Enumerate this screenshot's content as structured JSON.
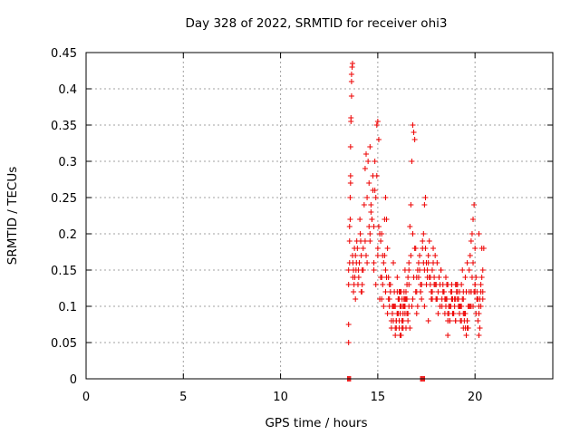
{
  "chart_data": {
    "type": "scatter",
    "title": "Day 328 of 2022, SRMTID for receiver ohi3",
    "xlabel": "GPS time / hours",
    "ylabel": "SRMTID / TECUs",
    "xlim": [
      0,
      24
    ],
    "ylim": [
      0,
      0.45
    ],
    "xticks": [
      0,
      5,
      10,
      15,
      20
    ],
    "yticks": [
      0,
      0.05,
      0.1,
      0.15,
      0.2,
      0.25,
      0.3,
      0.35,
      0.4,
      0.45
    ],
    "grid": true,
    "marker": "+",
    "color": "#ee0000",
    "series": [
      {
        "name": "ohi3",
        "x": [
          13.5,
          13.5,
          13.5,
          13.5,
          13.55,
          13.55,
          13.55,
          13.58,
          13.58,
          13.6,
          13.6,
          13.6,
          13.62,
          13.62,
          13.65,
          13.65,
          13.65,
          13.68,
          13.7,
          13.7,
          13.72,
          13.72,
          13.75,
          13.75,
          13.78,
          13.8,
          13.82,
          13.85,
          13.85,
          13.88,
          13.9,
          13.92,
          13.95,
          13.98,
          14.0,
          14.02,
          14.05,
          14.08,
          14.1,
          14.12,
          14.15,
          14.18,
          14.2,
          14.25,
          14.3,
          14.35,
          14.4,
          14.45,
          14.5,
          14.55,
          14.6,
          14.65,
          14.7,
          14.75,
          14.8,
          14.85,
          14.9,
          14.95,
          15.0,
          15.05,
          15.1,
          15.15,
          15.2,
          15.25,
          15.3,
          15.35,
          15.4,
          15.45,
          15.5,
          15.55,
          15.6,
          15.65,
          15.7,
          15.75,
          15.8,
          15.85,
          15.9,
          15.95,
          16.0,
          16.05,
          16.1,
          16.15,
          16.2,
          16.25,
          16.3,
          16.35,
          16.4,
          16.45,
          16.5,
          16.55,
          16.6,
          16.65,
          16.7,
          16.75,
          16.8,
          16.85,
          16.9,
          16.95,
          17.0,
          17.05,
          17.1,
          17.15,
          17.2,
          17.25,
          17.3,
          17.35,
          17.4,
          17.45,
          17.5,
          17.55,
          17.6,
          17.65,
          17.7,
          17.75,
          17.8,
          17.85,
          17.9,
          17.95,
          18.0,
          18.05,
          18.1,
          18.15,
          18.2,
          18.25,
          18.3,
          18.35,
          18.4,
          18.45,
          18.5,
          18.55,
          18.6,
          18.65,
          18.7,
          18.75,
          18.8,
          18.85,
          18.9,
          18.95,
          19.0,
          19.05,
          19.1,
          19.15,
          19.2,
          19.25,
          19.3,
          19.35,
          19.4,
          19.45,
          19.5,
          19.55,
          19.6,
          19.65,
          19.7,
          19.75,
          19.8,
          19.85,
          19.9,
          19.95,
          20.0,
          20.05,
          20.1,
          20.15,
          20.2,
          20.25,
          20.3,
          20.35,
          20.4,
          20.45,
          14.6,
          14.7,
          14.8,
          14.9,
          15.0,
          15.1,
          15.2,
          15.3,
          15.4,
          15.5,
          15.6,
          15.7,
          15.8,
          15.9,
          16.0,
          16.1,
          16.2,
          16.3,
          16.4,
          16.5,
          16.6,
          16.7,
          16.8,
          16.9,
          17.0,
          17.1,
          17.2,
          17.3,
          17.4,
          17.5,
          17.6,
          17.7,
          17.8,
          17.9,
          18.0,
          18.1,
          18.2,
          18.3,
          18.4,
          18.5,
          18.6,
          18.7,
          18.8,
          18.9,
          19.0,
          19.1,
          19.2,
          19.3,
          19.4,
          19.5,
          19.6,
          19.7,
          19.8,
          19.9,
          20.0,
          20.1,
          20.2,
          20.3,
          14.05,
          14.15,
          14.25,
          14.35,
          14.45,
          14.55,
          14.65,
          14.75,
          14.85,
          14.95,
          15.05,
          15.15,
          15.25,
          15.35,
          15.45,
          15.55,
          15.65,
          15.75,
          15.85,
          15.95,
          16.05,
          16.15,
          16.25,
          16.35,
          16.45,
          16.55,
          16.65,
          16.75,
          16.85,
          16.95,
          17.05,
          17.15,
          17.25,
          17.35,
          17.45,
          17.55,
          17.65,
          17.75,
          17.85,
          17.95,
          18.05,
          18.15,
          18.25,
          18.35,
          18.45,
          18.55,
          18.65,
          18.75,
          18.85,
          18.95,
          19.05,
          19.15,
          19.25,
          19.35,
          19.45,
          19.55,
          19.65,
          19.75,
          19.85,
          19.95,
          20.05,
          20.15,
          20.25,
          20.35,
          14.2,
          14.4,
          14.6,
          14.8,
          15.0,
          15.2,
          15.4,
          15.6,
          15.8,
          16.0,
          16.2,
          16.4,
          16.6,
          16.8,
          17.0,
          17.2,
          17.4,
          17.6,
          17.8,
          18.0,
          18.2,
          18.4,
          18.6,
          18.8,
          19.0,
          19.2,
          19.4,
          19.6,
          19.8,
          20.0,
          20.2,
          20.4,
          16.2,
          16.25,
          16.3,
          16.35,
          16.15,
          16.05,
          16.1,
          15.95,
          16.4,
          16.45,
          16.5,
          16.55,
          16.6,
          16.15,
          16.25,
          16.3,
          16.35,
          16.0,
          16.1,
          15.9,
          18.9,
          19.0,
          19.1,
          19.2,
          19.3,
          19.4,
          19.5,
          19.6,
          19.7,
          19.8,
          18.8,
          18.7,
          18.6,
          18.5,
          19.9,
          20.0,
          20.1,
          20.2,
          20.3,
          20.4,
          13.45,
          13.5,
          13.55,
          13.6,
          17.2,
          17.25,
          17.3,
          17.35,
          17.4
        ],
        "y": [
          0.05,
          0.075,
          0.13,
          0.15,
          0.16,
          0.19,
          0.21,
          0.22,
          0.25,
          0.27,
          0.28,
          0.32,
          0.355,
          0.36,
          0.39,
          0.41,
          0.42,
          0.43,
          0.435,
          0.17,
          0.14,
          0.16,
          0.12,
          0.15,
          0.13,
          0.18,
          0.14,
          0.17,
          0.11,
          0.15,
          0.16,
          0.19,
          0.18,
          0.13,
          0.15,
          0.14,
          0.16,
          0.22,
          0.2,
          0.19,
          0.17,
          0.12,
          0.13,
          0.15,
          0.24,
          0.29,
          0.31,
          0.25,
          0.3,
          0.27,
          0.32,
          0.24,
          0.22,
          0.28,
          0.21,
          0.26,
          0.25,
          0.35,
          0.355,
          0.33,
          0.2,
          0.14,
          0.11,
          0.13,
          0.16,
          0.17,
          0.25,
          0.22,
          0.18,
          0.14,
          0.1,
          0.12,
          0.07,
          0.09,
          0.08,
          0.1,
          0.06,
          0.08,
          0.09,
          0.11,
          0.07,
          0.1,
          0.06,
          0.08,
          0.1,
          0.12,
          0.09,
          0.07,
          0.11,
          0.14,
          0.16,
          0.21,
          0.24,
          0.3,
          0.35,
          0.34,
          0.33,
          0.18,
          0.12,
          0.1,
          0.14,
          0.15,
          0.13,
          0.11,
          0.18,
          0.2,
          0.24,
          0.25,
          0.16,
          0.14,
          0.17,
          0.19,
          0.13,
          0.11,
          0.15,
          0.18,
          0.13,
          0.17,
          0.11,
          0.16,
          0.12,
          0.14,
          0.1,
          0.15,
          0.11,
          0.13,
          0.12,
          0.09,
          0.1,
          0.11,
          0.13,
          0.09,
          0.08,
          0.1,
          0.12,
          0.11,
          0.09,
          0.1,
          0.08,
          0.12,
          0.13,
          0.11,
          0.09,
          0.1,
          0.13,
          0.15,
          0.07,
          0.08,
          0.09,
          0.06,
          0.07,
          0.1,
          0.12,
          0.17,
          0.19,
          0.2,
          0.22,
          0.24,
          0.18,
          0.14,
          0.12,
          0.08,
          0.06,
          0.07,
          0.1,
          0.18,
          0.12,
          0.18,
          0.2,
          0.22,
          0.15,
          0.13,
          0.17,
          0.11,
          0.14,
          0.1,
          0.12,
          0.09,
          0.11,
          0.08,
          0.1,
          0.07,
          0.09,
          0.12,
          0.1,
          0.08,
          0.11,
          0.13,
          0.15,
          0.17,
          0.2,
          0.18,
          0.14,
          0.16,
          0.12,
          0.19,
          0.15,
          0.13,
          0.16,
          0.14,
          0.12,
          0.14,
          0.11,
          0.09,
          0.13,
          0.1,
          0.12,
          0.11,
          0.08,
          0.1,
          0.13,
          0.09,
          0.11,
          0.12,
          0.1,
          0.08,
          0.11,
          0.14,
          0.16,
          0.15,
          0.12,
          0.1,
          0.13,
          0.11,
          0.2,
          0.13,
          0.16,
          0.12,
          0.18,
          0.19,
          0.16,
          0.21,
          0.23,
          0.26,
          0.3,
          0.28,
          0.21,
          0.19,
          0.17,
          0.22,
          0.14,
          0.11,
          0.13,
          0.1,
          0.12,
          0.08,
          0.11,
          0.09,
          0.07,
          0.1,
          0.12,
          0.09,
          0.07,
          0.1,
          0.14,
          0.12,
          0.15,
          0.17,
          0.13,
          0.16,
          0.18,
          0.15,
          0.14,
          0.12,
          0.16,
          0.13,
          0.11,
          0.14,
          0.15,
          0.12,
          0.11,
          0.13,
          0.1,
          0.12,
          0.09,
          0.11,
          0.13,
          0.1,
          0.08,
          0.11,
          0.09,
          0.12,
          0.07,
          0.1,
          0.14,
          0.12,
          0.09,
          0.11,
          0.11,
          0.14,
          0.15,
          0.17,
          0.19,
          0.16,
          0.18,
          0.2,
          0.15,
          0.13,
          0.16,
          0.14,
          0.12,
          0.15,
          0.13,
          0.11,
          0.09,
          0.12,
          0.1,
          0.08,
          0.11,
          0.13,
          0.1,
          0.12,
          0.09,
          0.11,
          0.13,
          0.1,
          0.12,
          0.08,
          0.1,
          0.12,
          0.09,
          0.11,
          0.1,
          0.08,
          0.07,
          0.11,
          0.06,
          0.09,
          0.08,
          0.07,
          0.1,
          0.11,
          0.09,
          0.08,
          0.1,
          0.12,
          0.11,
          0.09,
          0.1,
          0.12,
          0.11,
          0.1,
          0.09,
          0.08,
          0.11,
          0.12,
          0.1,
          0.09,
          0.07,
          0.08,
          0.1,
          0.12,
          0.11,
          0.08,
          0.06,
          0.14,
          0.16,
          0.13,
          0.11,
          0.1,
          0.12,
          0.15,
          0.0,
          0.0,
          0.0,
          0.0,
          0.0,
          0.0,
          0.0,
          0.0,
          0.0
        ]
      }
    ]
  }
}
